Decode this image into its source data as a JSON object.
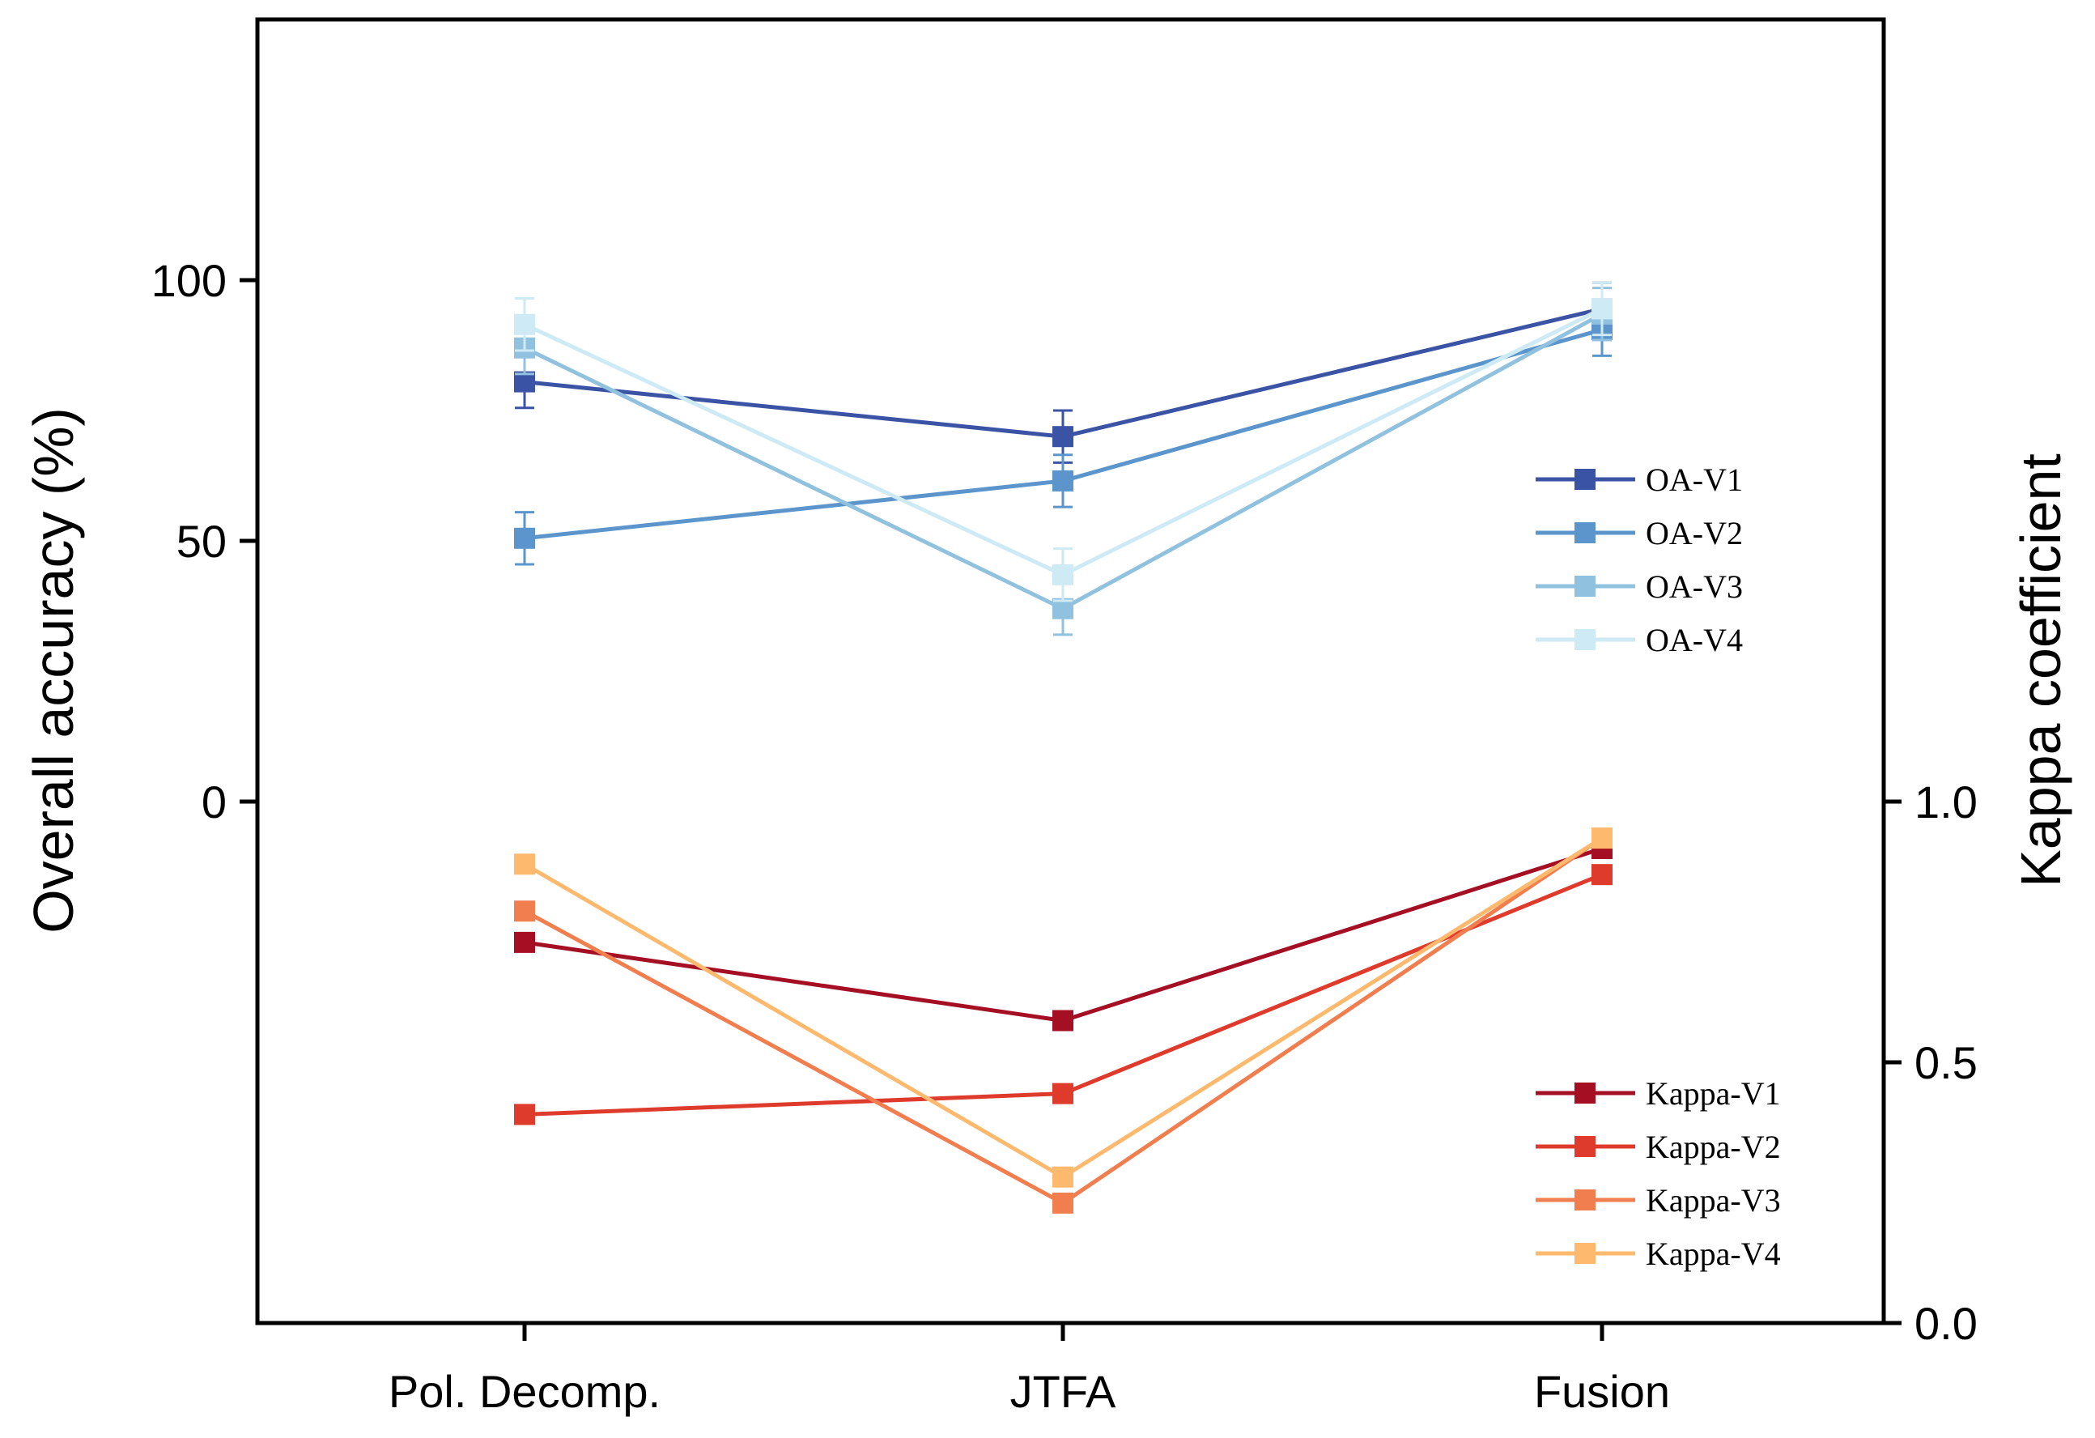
{
  "chart_data": {
    "type": "line",
    "categories": [
      "Pol. Decomp.",
      "JTFA",
      "Fusion"
    ],
    "left_axis": {
      "label": "Overall accuracy (%)",
      "range": [
        -100,
        150
      ],
      "ticks": [
        0,
        50,
        100
      ],
      "tick_labels": [
        "0",
        "50",
        "100"
      ]
    },
    "right_axis": {
      "label": "Kappa coefficient",
      "range": [
        0,
        2.5
      ],
      "ticks": [
        0.0,
        0.5,
        1.0
      ],
      "tick_labels": [
        "0.0",
        "0.5",
        "1.0"
      ]
    },
    "oa_series": [
      {
        "name": "OA-V1",
        "color": "#3a53a4",
        "values": [
          80.5,
          70.0,
          94.5
        ],
        "errors": [
          5,
          5,
          5
        ]
      },
      {
        "name": "OA-V2",
        "color": "#5b95cb",
        "values": [
          50.5,
          61.5,
          90.5
        ],
        "errors": [
          5,
          5,
          5
        ]
      },
      {
        "name": "OA-V3",
        "color": "#90c2df",
        "values": [
          87.0,
          37.0,
          93.5
        ],
        "errors": [
          5,
          5,
          5
        ]
      },
      {
        "name": "OA-V4",
        "color": "#cdeaf5",
        "values": [
          91.5,
          43.5,
          94.5
        ],
        "errors": [
          5,
          5,
          5
        ]
      }
    ],
    "kappa_series": [
      {
        "name": "Kappa-V1",
        "color": "#a50f24",
        "values": [
          0.73,
          0.58,
          0.91
        ]
      },
      {
        "name": "Kappa-V2",
        "color": "#df3b2c",
        "values": [
          0.4,
          0.44,
          0.86
        ]
      },
      {
        "name": "Kappa-V3",
        "color": "#f07e4f",
        "values": [
          0.79,
          0.23,
          0.93
        ]
      },
      {
        "name": "Kappa-V4",
        "color": "#fdba6e",
        "values": [
          0.88,
          0.28,
          0.93
        ]
      }
    ],
    "legends": [
      "right, upper-middle (OA series)",
      "right, bottom (Kappa series)"
    ],
    "grid": false
  }
}
